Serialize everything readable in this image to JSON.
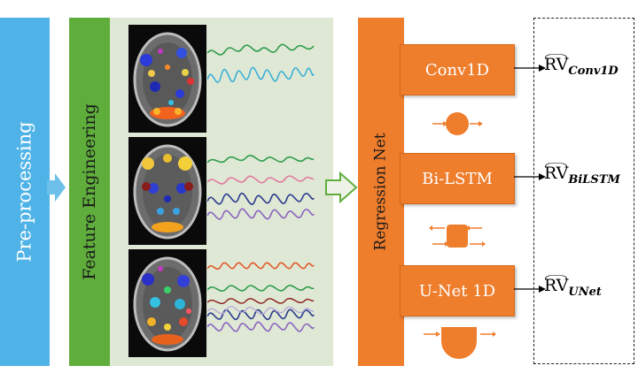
{
  "stages": {
    "preprocessing": "Pre-processing",
    "feature_engineering": "Feature Engineering",
    "regression_net": "Regression Net"
  },
  "models": [
    {
      "label": "Conv1D",
      "output": "RV",
      "subscript": "Conv1D"
    },
    {
      "label": "Bi-LSTM",
      "output": "RV",
      "subscript": "BiLSTM"
    },
    {
      "label": "U-Net 1D",
      "output": "RV",
      "subscript": "UNet"
    }
  ],
  "colors": {
    "preprocessing": "#4fb3e8",
    "feature_engineering": "#5fae3c",
    "feature_panel": "#dfe8d5",
    "regression": "#ee7d2c",
    "signal_green": "#2e9d4c",
    "signal_cyan": "#3bb0d6",
    "signal_pink": "#e07aa0",
    "signal_navy": "#2b3a8c",
    "signal_purple": "#8a63c0",
    "signal_red": "#e05a2a"
  }
}
